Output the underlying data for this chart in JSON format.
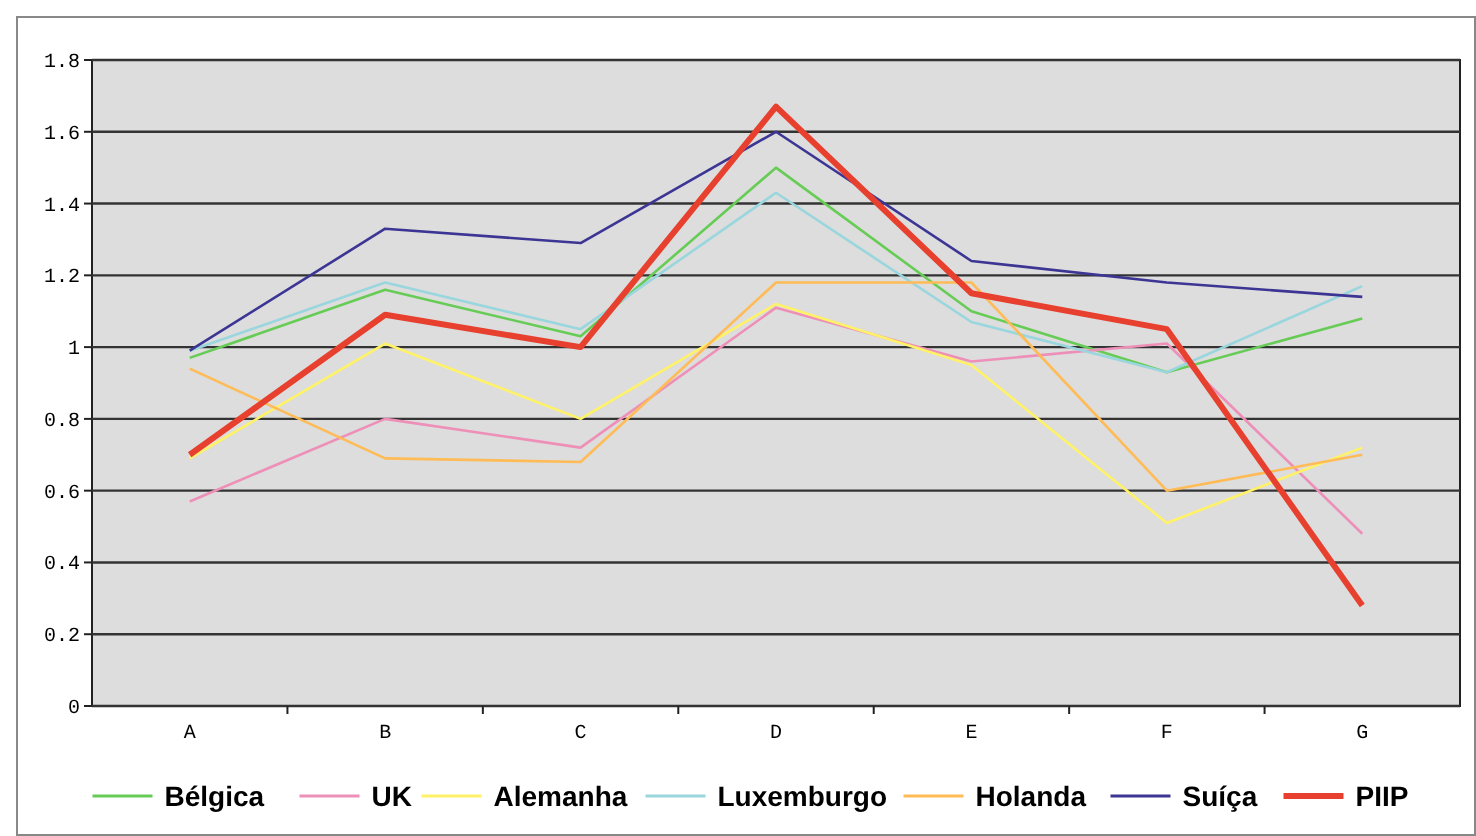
{
  "chart_data": {
    "type": "line",
    "categories": [
      "A",
      "B",
      "C",
      "D",
      "E",
      "F",
      "G"
    ],
    "series": [
      {
        "name": "Bélgica",
        "color": "#66cc55",
        "values": [
          0.97,
          1.16,
          1.03,
          1.5,
          1.1,
          0.93,
          1.08
        ]
      },
      {
        "name": "UK",
        "color": "#ee8fb8",
        "values": [
          0.57,
          0.8,
          0.72,
          1.11,
          0.96,
          1.01,
          0.48
        ]
      },
      {
        "name": "Alemanha",
        "color": "#fff266",
        "values": [
          0.69,
          1.01,
          0.8,
          1.12,
          0.95,
          0.51,
          0.72
        ]
      },
      {
        "name": "Luxemburgo",
        "color": "#99d6dd",
        "values": [
          0.99,
          1.18,
          1.05,
          1.43,
          1.07,
          0.93,
          1.17
        ]
      },
      {
        "name": "Holanda",
        "color": "#ffbb55",
        "values": [
          0.94,
          0.69,
          0.68,
          1.18,
          1.18,
          0.6,
          0.7
        ]
      },
      {
        "name": "Suíça",
        "color": "#3c3594",
        "values": [
          0.99,
          1.33,
          1.29,
          1.6,
          1.24,
          1.18,
          1.14
        ]
      },
      {
        "name": "PIIP",
        "color": "#e8402e",
        "values": [
          0.7,
          1.09,
          1.0,
          1.67,
          1.15,
          1.05,
          0.28
        ]
      }
    ],
    "ylim": [
      0,
      1.8
    ],
    "yticks": [
      0,
      0.2,
      0.4,
      0.6,
      0.8,
      1,
      1.2,
      1.4,
      1.6,
      1.8
    ],
    "grid": "y",
    "legend": "bottom",
    "marker": "none",
    "line_style": "solid"
  }
}
